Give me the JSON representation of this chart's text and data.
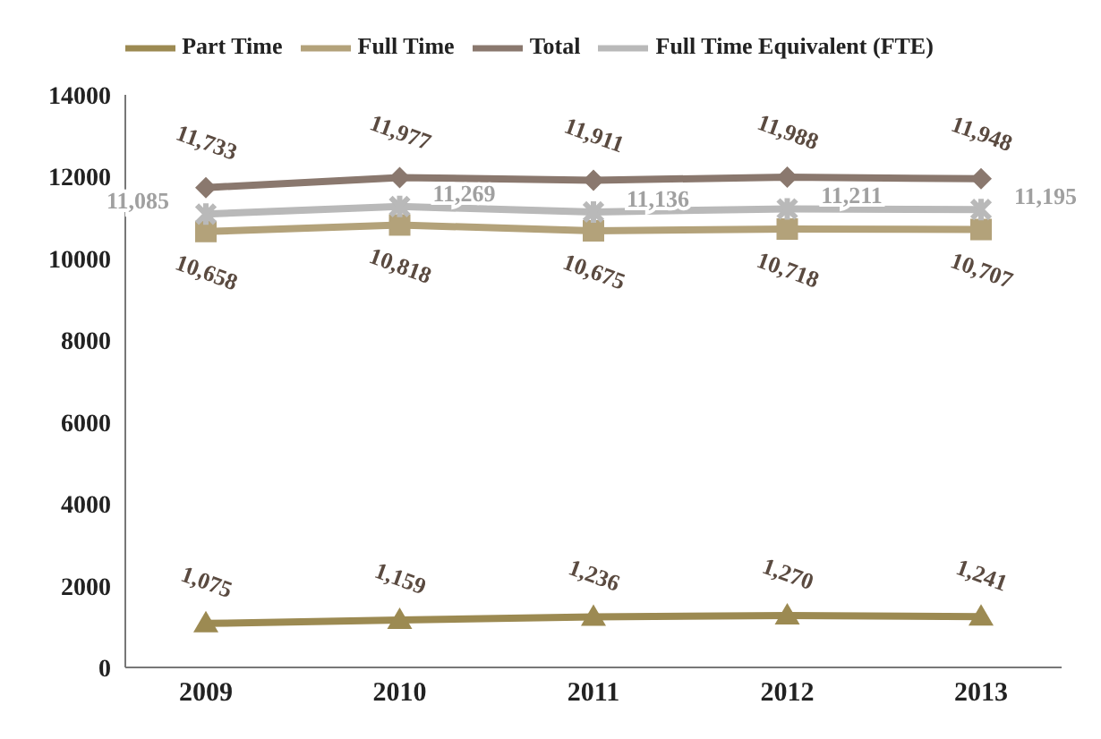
{
  "chart_data": {
    "type": "line",
    "categories": [
      "2009",
      "2010",
      "2011",
      "2012",
      "2013"
    ],
    "series": [
      {
        "name": "Part Time",
        "color": "#9c8a52",
        "marker": "triangle",
        "values": [
          1075,
          1159,
          1236,
          1270,
          1241
        ],
        "value_labels": [
          "1,075",
          "1,159",
          "1,236",
          "1,270",
          "1,241"
        ]
      },
      {
        "name": "Full Time",
        "color": "#b3a27a",
        "marker": "square",
        "values": [
          10658,
          10818,
          10675,
          10718,
          10707
        ],
        "value_labels": [
          "10,658",
          "10,818",
          "10,675",
          "10,718",
          "10,707"
        ]
      },
      {
        "name": "Total",
        "color": "#8a786e",
        "marker": "diamond",
        "values": [
          11733,
          11977,
          11911,
          11988,
          11948
        ],
        "value_labels": [
          "11,733",
          "11,977",
          "11,911",
          "11,988",
          "11,948"
        ]
      },
      {
        "name": "Full Time Equivalent (FTE)",
        "color": "#b9b9b9",
        "marker": "cross",
        "values": [
          11085,
          11269,
          11136,
          11211,
          11195
        ],
        "value_labels": [
          "11,085",
          "11,269",
          "11,136",
          "11,211",
          "11,195"
        ]
      }
    ],
    "ylim": [
      0,
      14000
    ],
    "yticks": [
      0,
      2000,
      4000,
      6000,
      8000,
      10000,
      12000,
      14000
    ],
    "grid": false,
    "legend": "top"
  }
}
